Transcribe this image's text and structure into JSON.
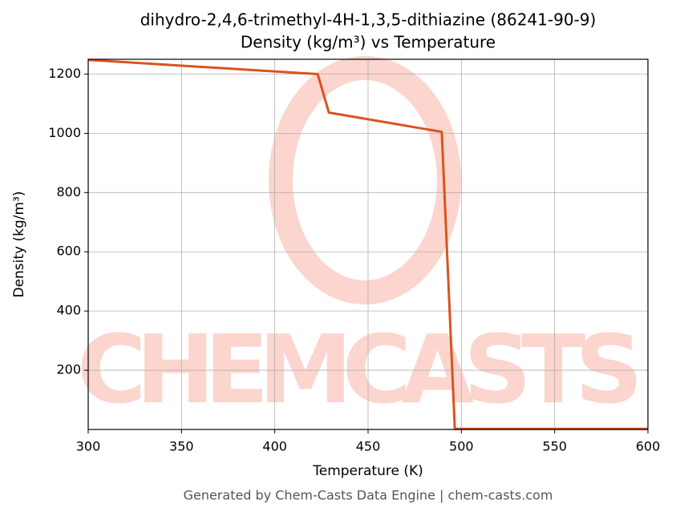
{
  "chart_data": {
    "type": "line",
    "title": "dihydro-2,4,6-trimethyl-4H-1,3,5-dithiazine (86241-90-9)",
    "subtitle": "Density (kg/m³) vs Temperature",
    "x_label": "Temperature (K)",
    "y_label": "Density (kg/m³)",
    "footer": "Generated by Chem-Casts Data Engine | chem-casts.com",
    "watermark": "CHEMCASTS",
    "x": [
      300,
      423,
      429,
      489.5,
      496.5,
      600
    ],
    "series": [
      {
        "name": "Density",
        "color": "#d9541e",
        "values": [
          1248,
          1200,
          1070,
          1005,
          2,
          2
        ]
      }
    ],
    "xlim": [
      300,
      600
    ],
    "xticks": [
      300,
      350,
      400,
      450,
      500,
      550,
      600
    ],
    "ylim": [
      0,
      1250
    ],
    "yticks": [
      200,
      400,
      600,
      800,
      1000,
      1200
    ],
    "grid": true
  }
}
